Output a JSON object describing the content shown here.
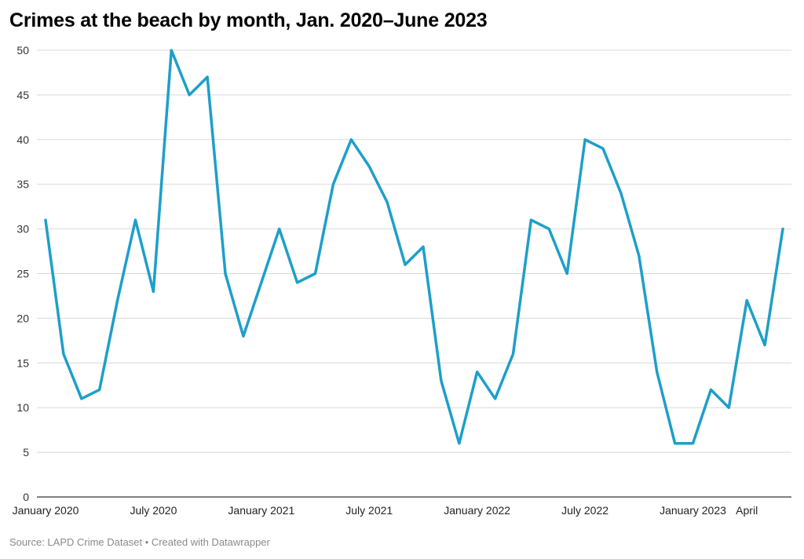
{
  "title": "Crimes at the beach by month, Jan. 2020–June 2023",
  "footer": "Source: LAPD Crime Dataset • Created with Datawrapper",
  "colors": {
    "line": "#1d9fca",
    "grid": "#d9d9d9",
    "axis": "#333333"
  },
  "chart_data": {
    "type": "line",
    "title": "Crimes at the beach by month, Jan. 2020–June 2023",
    "xlabel": "",
    "ylabel": "",
    "ylim": [
      0,
      50
    ],
    "yticks": [
      0,
      5,
      10,
      15,
      20,
      25,
      30,
      35,
      40,
      45,
      50
    ],
    "grid": true,
    "x": [
      "2020-01",
      "2020-02",
      "2020-03",
      "2020-04",
      "2020-05",
      "2020-06",
      "2020-07",
      "2020-08",
      "2020-09",
      "2020-10",
      "2020-11",
      "2020-12",
      "2021-01",
      "2021-02",
      "2021-03",
      "2021-04",
      "2021-05",
      "2021-06",
      "2021-07",
      "2021-08",
      "2021-09",
      "2021-10",
      "2021-11",
      "2021-12",
      "2022-01",
      "2022-02",
      "2022-03",
      "2022-04",
      "2022-05",
      "2022-06",
      "2022-07",
      "2022-08",
      "2022-09",
      "2022-10",
      "2022-11",
      "2022-12",
      "2023-01",
      "2023-02",
      "2023-03",
      "2023-04",
      "2023-05",
      "2023-06"
    ],
    "values": [
      31,
      16,
      11,
      12,
      22,
      31,
      23,
      50,
      45,
      47,
      25,
      18,
      24,
      30,
      24,
      25,
      35,
      40,
      37,
      33,
      26,
      28,
      13,
      6,
      14,
      11,
      16,
      31,
      30,
      25,
      40,
      39,
      34,
      27,
      14,
      6,
      6,
      12,
      10,
      22,
      17,
      30
    ],
    "xticks": [
      {
        "label": "January 2020",
        "x": "2020-01"
      },
      {
        "label": "July 2020",
        "x": "2020-07"
      },
      {
        "label": "January 2021",
        "x": "2021-01"
      },
      {
        "label": "July 2021",
        "x": "2021-07"
      },
      {
        "label": "January 2022",
        "x": "2022-01"
      },
      {
        "label": "July 2022",
        "x": "2022-07"
      },
      {
        "label": "January 2023",
        "x": "2023-01"
      },
      {
        "label": "April",
        "x": "2023-04"
      }
    ]
  }
}
